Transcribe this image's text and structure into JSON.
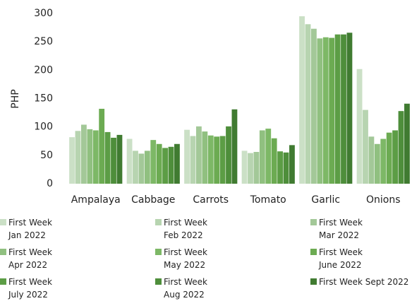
{
  "chart_data": {
    "type": "bar",
    "ylabel": "PHP",
    "categories": [
      "Ampalaya",
      "Cabbage",
      "Carrots",
      "Tomato",
      "Garlic",
      "Onions"
    ],
    "series": [
      {
        "name": "First Week Jan 2022",
        "color": "#cbe0c6",
        "values": [
          82,
          79,
          95,
          58,
          295,
          202
        ]
      },
      {
        "name": "First Week Feb 2022",
        "color": "#b7d4b0",
        "values": [
          93,
          58,
          84,
          54,
          281,
          130
        ]
      },
      {
        "name": "First Week Mar 2022",
        "color": "#a3c898",
        "values": [
          104,
          53,
          101,
          56,
          273,
          83
        ]
      },
      {
        "name": "First Week Apr 2022",
        "color": "#90c080",
        "values": [
          96,
          58,
          92,
          94,
          256,
          70
        ]
      },
      {
        "name": "First Week May 2022",
        "color": "#7db866",
        "values": [
          94,
          77,
          85,
          97,
          258,
          79
        ]
      },
      {
        "name": "First Week June 2022",
        "color": "#6cab52",
        "values": [
          132,
          70,
          83,
          80,
          257,
          90
        ]
      },
      {
        "name": "First Week July 2022",
        "color": "#5c9d45",
        "values": [
          91,
          63,
          84,
          57,
          263,
          94
        ]
      },
      {
        "name": "First Week Aug 2022",
        "color": "#4e8e3b",
        "values": [
          81,
          65,
          101,
          55,
          263,
          128
        ]
      },
      {
        "name": "First Week Sept 2022",
        "color": "#407b31",
        "values": [
          86,
          70,
          131,
          68,
          266,
          141
        ]
      }
    ],
    "ylim": [
      0,
      300
    ],
    "yticks": [
      0,
      50,
      100,
      150,
      200,
      250,
      300
    ],
    "grid": false
  }
}
